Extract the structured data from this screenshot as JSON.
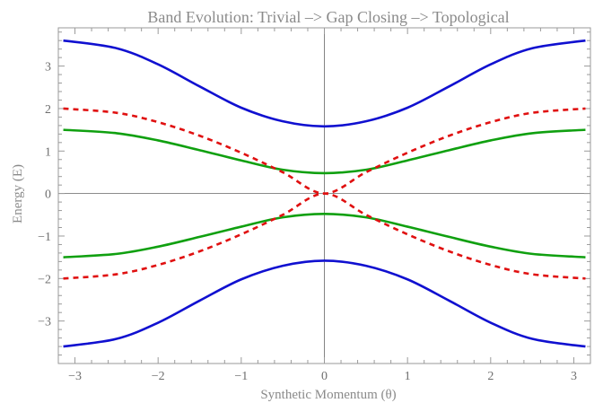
{
  "chart_data": {
    "type": "line",
    "title": "Band Evolution: Trivial –> Gap Closing –> Topological",
    "xlabel": "Synthetic Momentum (θ)",
    "ylabel": "Energy (E)",
    "xlim": [
      -3.2,
      3.2
    ],
    "ylim": [
      -4.0,
      3.9
    ],
    "xticks": [
      -3,
      -2,
      -1,
      0,
      1,
      2,
      3
    ],
    "xtick_labels": [
      "−3",
      "−2",
      "−1",
      "0",
      "1",
      "2",
      "3"
    ],
    "yticks": [
      -3,
      -2,
      -1,
      0,
      1,
      2,
      3
    ],
    "ytick_labels": [
      "−3",
      "−2",
      "−1",
      "0",
      "1",
      "2",
      "3"
    ],
    "grid": false,
    "x": [
      -3.14,
      -2.5,
      -2.0,
      -1.5,
      -1.0,
      -0.5,
      0.0,
      0.5,
      1.0,
      1.5,
      2.0,
      2.5,
      3.14
    ],
    "series": [
      {
        "color": "#1010d0",
        "dash": false,
        "values": [
          3.6,
          3.42,
          3.04,
          2.52,
          2.02,
          1.7,
          1.58,
          1.7,
          2.02,
          2.52,
          3.04,
          3.42,
          3.6
        ]
      },
      {
        "color": "#1010d0",
        "dash": false,
        "values": [
          -3.6,
          -3.42,
          -3.04,
          -2.52,
          -2.02,
          -1.7,
          -1.58,
          -1.7,
          -2.02,
          -2.52,
          -3.04,
          -3.42,
          -3.6
        ]
      },
      {
        "color": "#10a010",
        "dash": false,
        "values": [
          1.5,
          1.42,
          1.25,
          1.02,
          0.78,
          0.56,
          0.48,
          0.56,
          0.78,
          1.02,
          1.25,
          1.42,
          1.5
        ]
      },
      {
        "color": "#10a010",
        "dash": false,
        "values": [
          -1.5,
          -1.42,
          -1.25,
          -1.02,
          -0.78,
          -0.56,
          -0.48,
          -0.56,
          -0.78,
          -1.02,
          -1.25,
          -1.42,
          -1.5
        ]
      },
      {
        "color": "#e01010",
        "dash": true,
        "values": [
          2.0,
          1.9,
          1.68,
          1.36,
          0.96,
          0.5,
          0.0,
          0.5,
          0.96,
          1.36,
          1.68,
          1.9,
          2.0
        ]
      },
      {
        "color": "#e01010",
        "dash": true,
        "values": [
          -2.0,
          -1.9,
          -1.68,
          -1.36,
          -0.96,
          -0.5,
          0.0,
          -0.5,
          -0.96,
          -1.36,
          -1.68,
          -1.9,
          -2.0
        ]
      }
    ]
  }
}
